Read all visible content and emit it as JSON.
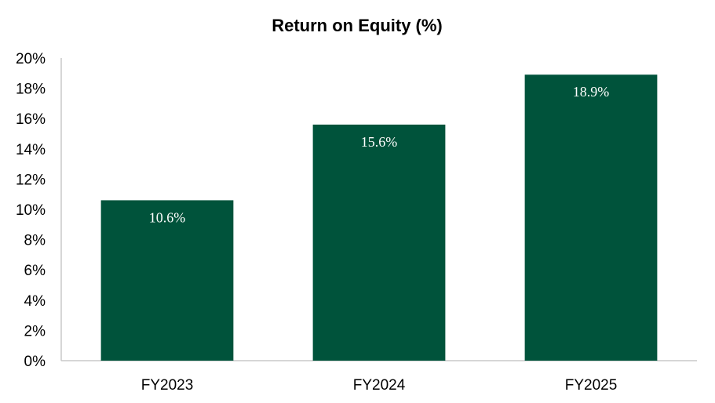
{
  "chart_data": {
    "type": "bar",
    "title": "Return on Equity (%)",
    "categories": [
      "FY2023",
      "FY2024",
      "FY2025"
    ],
    "values": [
      10.6,
      15.6,
      18.9
    ],
    "data_labels": [
      "10.6%",
      "15.6%",
      "18.9%"
    ],
    "ylim": [
      0,
      20
    ],
    "y_ticks": [
      0,
      2,
      4,
      6,
      8,
      10,
      12,
      14,
      16,
      18,
      20
    ],
    "y_tick_labels": [
      "0%",
      "2%",
      "4%",
      "6%",
      "8%",
      "10%",
      "12%",
      "14%",
      "16%",
      "18%",
      "20%"
    ],
    "xlabel": "",
    "ylabel": "",
    "grid": false,
    "legend": "none",
    "bar_color": "#00533b",
    "label_color": "#ffffff"
  }
}
